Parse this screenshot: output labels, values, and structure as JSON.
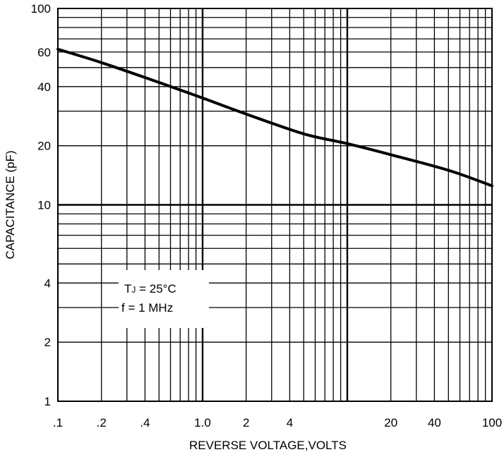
{
  "chart_data": {
    "type": "line",
    "x_scale": "log",
    "y_scale": "log",
    "xlim": [
      0.1,
      100
    ],
    "ylim": [
      1,
      100
    ],
    "xlabel": "REVERSE VOLTAGE,VOLTS",
    "ylabel": "CAPACITANCE (pF)",
    "x_ticks": [
      {
        "value": 0.1,
        "label": ".1"
      },
      {
        "value": 0.2,
        "label": ".2"
      },
      {
        "value": 0.4,
        "label": ".4"
      },
      {
        "value": 1,
        "label": "1.0"
      },
      {
        "value": 2,
        "label": "2"
      },
      {
        "value": 4,
        "label": "4"
      },
      {
        "value": 20,
        "label": "20"
      },
      {
        "value": 40,
        "label": "40"
      },
      {
        "value": 100,
        "label": "100"
      }
    ],
    "y_ticks": [
      {
        "value": 1,
        "label": "1"
      },
      {
        "value": 2,
        "label": "2"
      },
      {
        "value": 4,
        "label": "4"
      },
      {
        "value": 10,
        "label": "10"
      },
      {
        "value": 20,
        "label": "20"
      },
      {
        "value": 40,
        "label": "40"
      },
      {
        "value": 60,
        "label": "60"
      },
      {
        "value": 100,
        "label": "100"
      }
    ],
    "grid": true,
    "series": [
      {
        "x": [
          0.1,
          0.2,
          0.5,
          1,
          2,
          5,
          10,
          20,
          50,
          100
        ],
        "y": [
          62,
          53,
          42,
          35,
          29,
          23,
          20.5,
          18,
          15,
          12.5
        ]
      }
    ],
    "annotations": [
      {
        "prefix": "T",
        "sub": "J",
        "suffix": " = 25°C"
      },
      {
        "text": "f = 1 MHz"
      }
    ]
  }
}
